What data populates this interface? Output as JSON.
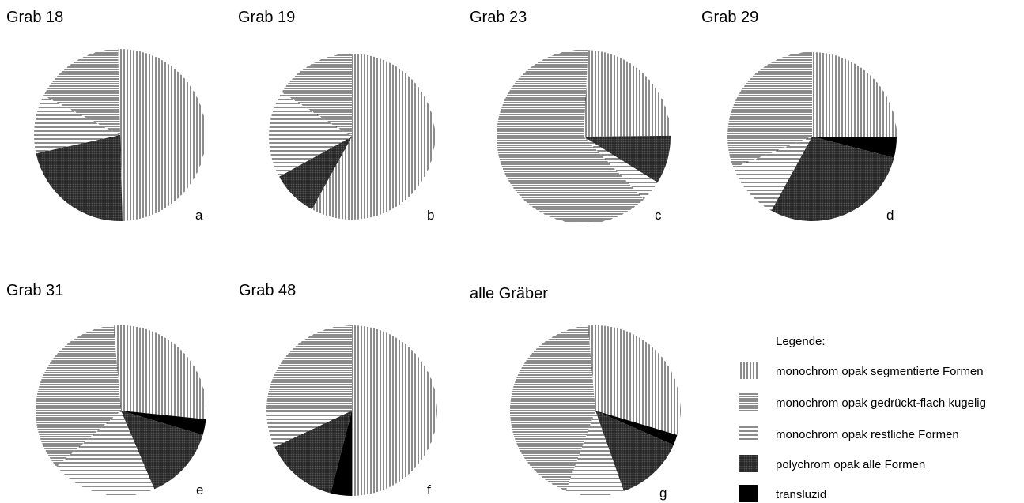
{
  "legend": {
    "title": "Legende:",
    "entries": [
      {
        "name": "monochrom opak segmentierte Formen",
        "pattern": "vertical"
      },
      {
        "name": "monochrom opak gedrückt-flach kugelig",
        "pattern": "horizontal-dense"
      },
      {
        "name": "monochrom opak restliche Formen",
        "pattern": "horizontal-sparse"
      },
      {
        "name": "polychrom opak alle Formen",
        "pattern": "crosshatch"
      },
      {
        "name": "transluzid",
        "pattern": "solid-black"
      }
    ]
  },
  "colors": {
    "ink": "#000000",
    "paper": "#ffffff",
    "crosshatch": "#3a3a3a"
  },
  "chart_data": [
    {
      "type": "pie",
      "title": "Grab 18",
      "letter": "a",
      "categories": [
        "monochrom opak segmentierte Formen",
        "polychrom opak alle Formen",
        "monochrom opak restliche Formen",
        "monochrom opak gedrückt-flach kugelig",
        "transluzid"
      ],
      "values": [
        50,
        22,
        11,
        17,
        0
      ]
    },
    {
      "type": "pie",
      "title": "Grab 19",
      "letter": "b",
      "categories": [
        "monochrom opak segmentierte Formen",
        "polychrom opak alle Formen",
        "monochrom opak restliche Formen",
        "monochrom opak gedrückt-flach kugelig",
        "transluzid"
      ],
      "values": [
        58,
        9,
        17,
        16,
        0
      ]
    },
    {
      "type": "pie",
      "title": "Grab 23",
      "letter": "c",
      "categories": [
        "monochrom opak segmentierte Formen",
        "polychrom opak alle Formen",
        "monochrom opak restliche Formen",
        "monochrom opak gedrückt-flach kugelig",
        "transluzid"
      ],
      "values": [
        24,
        9,
        4,
        63,
        0
      ]
    },
    {
      "type": "pie",
      "title": "Grab 29",
      "letter": "d",
      "categories": [
        "monochrom opak segmentierte Formen",
        "transluzid",
        "polychrom opak alle Formen",
        "monochrom opak restliche Formen",
        "monochrom opak gedrückt-flach kugelig"
      ],
      "values": [
        25,
        4,
        29,
        11,
        31
      ]
    },
    {
      "type": "pie",
      "title": "Grab 31",
      "letter": "e",
      "categories": [
        "monochrom opak segmentierte Formen",
        "transluzid",
        "polychrom opak alle Formen",
        "monochrom opak restliche Formen",
        "monochrom opak gedrückt-flach kugelig"
      ],
      "values": [
        28,
        3,
        14,
        20,
        35
      ]
    },
    {
      "type": "pie",
      "title": "Grab 48",
      "letter": "f",
      "categories": [
        "monochrom opak segmentierte Formen",
        "transluzid",
        "polychrom opak alle Formen",
        "monochrom opak restliche Formen",
        "monochrom opak gedrückt-flach kugelig"
      ],
      "values": [
        50,
        4,
        14,
        7,
        25
      ]
    },
    {
      "type": "pie",
      "title": "alle Gräber",
      "letter": "g",
      "categories": [
        "monochrom opak segmentierte Formen",
        "transluzid",
        "polychrom opak alle Formen",
        "monochrom opak restliche Formen",
        "monochrom opak gedrückt-flach kugelig"
      ],
      "values": [
        31,
        2,
        13,
        11,
        43
      ]
    }
  ]
}
